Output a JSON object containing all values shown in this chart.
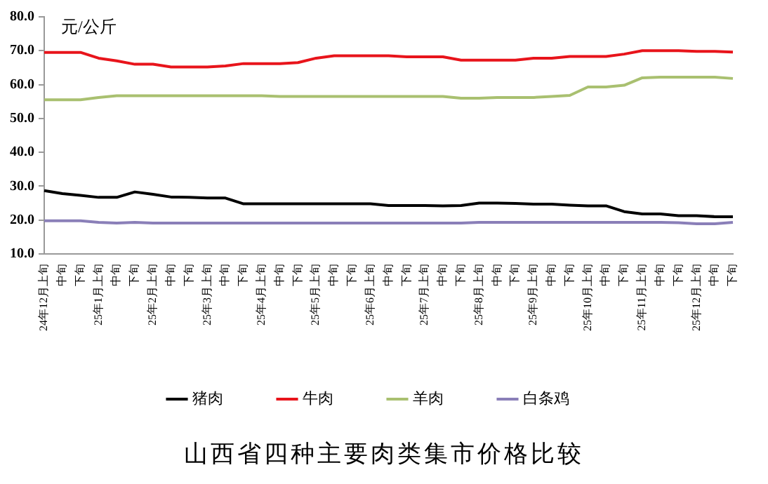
{
  "chart_data": {
    "type": "line",
    "title": "山西省四种主要肉类集市价格比较",
    "ylabel": "元/公斤",
    "categories": [
      "24年12月上旬",
      "中旬",
      "下旬",
      "25年1月上旬",
      "中旬",
      "下旬",
      "25年2月上旬",
      "中旬",
      "下旬",
      "25年3月上旬",
      "中旬",
      "下旬",
      "25年4月上旬",
      "中旬",
      "下旬",
      "25年5月上旬",
      "中旬",
      "下旬",
      "25年6月上旬",
      "中旬",
      "下旬",
      "25年7月上旬",
      "中旬",
      "下旬",
      "25年8月上旬",
      "中旬",
      "下旬",
      "25年9月上旬",
      "中旬",
      "下旬",
      "25年10月上旬",
      "中旬",
      "下旬",
      "25年11月上旬",
      "中旬",
      "下旬",
      "25年12月上旬",
      "中旬",
      "下旬"
    ],
    "series": [
      {
        "name": "猪肉",
        "color": "#000000",
        "values": [
          28.7,
          27.8,
          27.3,
          26.7,
          26.7,
          28.3,
          27.6,
          26.8,
          26.7,
          26.5,
          26.5,
          24.8,
          24.8,
          24.8,
          24.8,
          24.8,
          24.8,
          24.8,
          24.8,
          24.3,
          24.3,
          24.3,
          24.2,
          24.3,
          25.0,
          25.0,
          24.9,
          24.7,
          24.7,
          24.4,
          24.2,
          24.2,
          22.5,
          21.8,
          21.8,
          21.3,
          21.3,
          21.0,
          21.0
        ]
      },
      {
        "name": "牛肉",
        "color": "#e8141b",
        "values": [
          69.5,
          69.5,
          69.5,
          67.8,
          67.0,
          66.0,
          66.0,
          65.2,
          65.2,
          65.2,
          65.5,
          66.2,
          66.2,
          66.2,
          66.5,
          67.8,
          68.5,
          68.5,
          68.5,
          68.5,
          68.2,
          68.2,
          68.2,
          67.2,
          67.2,
          67.2,
          67.2,
          67.8,
          67.8,
          68.3,
          68.3,
          68.3,
          69.0,
          70.0,
          70.0,
          70.0,
          69.8,
          69.8,
          69.6
        ]
      },
      {
        "name": "羊肉",
        "color": "#a9c070",
        "values": [
          55.5,
          55.5,
          55.5,
          56.2,
          56.7,
          56.7,
          56.7,
          56.7,
          56.7,
          56.7,
          56.7,
          56.7,
          56.7,
          56.5,
          56.5,
          56.5,
          56.5,
          56.5,
          56.5,
          56.5,
          56.5,
          56.5,
          56.5,
          56.0,
          56.0,
          56.2,
          56.2,
          56.2,
          56.5,
          56.8,
          59.3,
          59.3,
          59.8,
          62.0,
          62.2,
          62.2,
          62.2,
          62.2,
          61.8
        ]
      },
      {
        "name": "白条鸡",
        "color": "#8a7fb8",
        "values": [
          19.8,
          19.8,
          19.8,
          19.3,
          19.1,
          19.3,
          19.1,
          19.1,
          19.1,
          19.1,
          19.1,
          19.1,
          19.1,
          19.1,
          19.1,
          19.1,
          19.1,
          19.1,
          19.1,
          19.1,
          19.1,
          19.1,
          19.1,
          19.1,
          19.3,
          19.3,
          19.3,
          19.3,
          19.3,
          19.3,
          19.3,
          19.3,
          19.3,
          19.3,
          19.3,
          19.2,
          18.9,
          18.9,
          19.3
        ]
      }
    ],
    "ylim": [
      10,
      80
    ],
    "yticks": [
      {
        "value": 10,
        "label": "10.0"
      },
      {
        "value": 20,
        "label": "20.0"
      },
      {
        "value": 30,
        "label": "30.0"
      },
      {
        "value": 40,
        "label": "40.0"
      },
      {
        "value": 50,
        "label": "50.0"
      },
      {
        "value": 60,
        "label": "60.0"
      },
      {
        "value": 70,
        "label": "70.0"
      },
      {
        "value": 80,
        "label": "80.0"
      }
    ],
    "grid": false,
    "legend": "bottom",
    "marker": "none",
    "line_style": "solid"
  }
}
